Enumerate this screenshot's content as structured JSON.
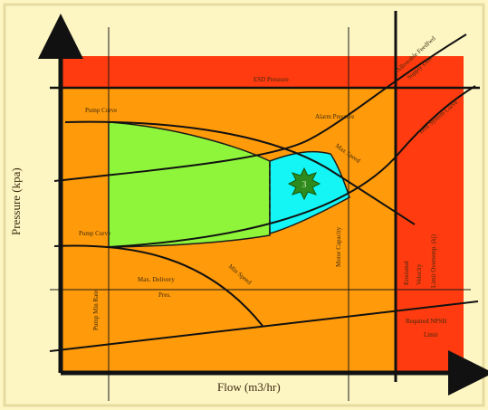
{
  "colors": {
    "background": "#fdf6c3",
    "frame": "#e6dca0",
    "danger_zone": "#ff3b0f",
    "operating_zone": "#ff9a0a",
    "green_region": "#8ff53a",
    "cyan_region": "#14f5f5",
    "star": "#2f8a1e",
    "lines": "#111111"
  },
  "labels": {
    "y_axis": "Pressure (kpa)",
    "x_axis": "Flow (m3/hr)",
    "esd_pressure": "ESD Pressure",
    "pump_curve_top": "Pump Curve",
    "pump_curve_bottom": "Pump Curve",
    "alarm_pressure": "Alarm Pressure",
    "max_speed_upper": "Max Speed",
    "max_speed_lower": "Min Speed",
    "allowable_feedback": "Allowable Feedfwd",
    "allowable_feedback_2": "Supply Line",
    "best_system_curve": "Best System Curve",
    "pump_min_rate": "Pump Min Rate",
    "max_delivery": "Max. Delivery",
    "max_delivery_2": "Pres.",
    "motor_capacity": "Motor Capacity",
    "erosional_velocity": "Erosional",
    "erosional_velocity_2": "Velocity",
    "limit_overtemp": "Limit Overtemp. (kj)",
    "required_npsh": "Required NPSH",
    "required_npsh_2": "Limit",
    "star_label": "3"
  }
}
